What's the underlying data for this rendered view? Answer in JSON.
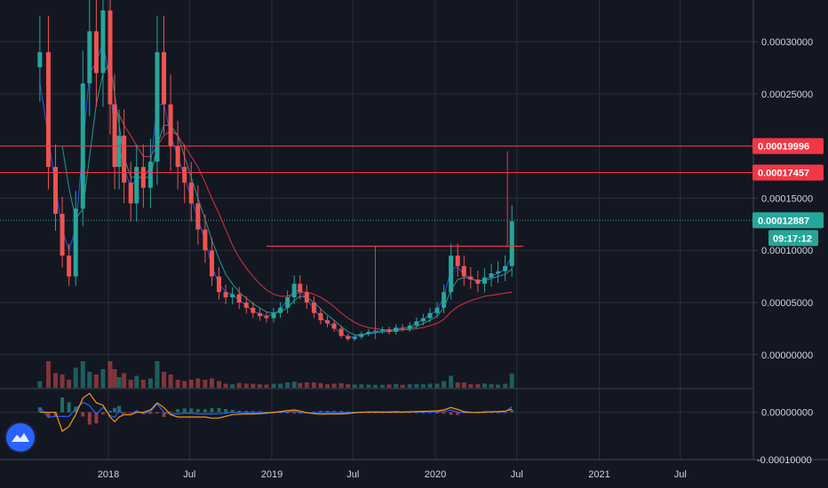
{
  "colors": {
    "background": "#131722",
    "grid": "#2a2e39",
    "axis_text": "#d1d4dc",
    "up": "#26a69a",
    "down": "#ef5350",
    "level_line": "#f23645",
    "last_price": "#26a69a",
    "ma_fast": "#2962ff",
    "ma_mid": "#26a69a",
    "ma_slow": "#ff9800",
    "ma_long": "#f23645"
  },
  "price_axis": {
    "ticks": [
      {
        "value": 0.0003,
        "label": "0.00030000"
      },
      {
        "value": 0.00025,
        "label": "0.00025000"
      },
      {
        "value": 0.00015,
        "label": "0.00015000"
      },
      {
        "value": 0.0001,
        "label": "0.00010000"
      },
      {
        "value": 5e-05,
        "label": "0.00005000"
      },
      {
        "value": 0.0,
        "label": "0.00000000"
      }
    ]
  },
  "indicator_axis": {
    "ticks": [
      {
        "value": 0.0,
        "label": "0.00000000"
      },
      {
        "value": -0.0001,
        "label": "-0.00010000"
      }
    ]
  },
  "time_axis": {
    "ticks": [
      {
        "date": "2018-01-01",
        "label": "2018"
      },
      {
        "date": "2018-07-01",
        "label": "Jul"
      },
      {
        "date": "2019-01-01",
        "label": "2019"
      },
      {
        "date": "2019-07-01",
        "label": "Jul"
      },
      {
        "date": "2020-01-01",
        "label": "2020"
      },
      {
        "date": "2020-07-01",
        "label": "Jul"
      },
      {
        "date": "2021-01-01",
        "label": "2021"
      },
      {
        "date": "2021-07-01",
        "label": "Jul"
      }
    ]
  },
  "price_tags": [
    {
      "value": 0.00019996,
      "label": "0.00019996",
      "kind": "level"
    },
    {
      "value": 0.00017457,
      "label": "0.00017457",
      "kind": "level"
    },
    {
      "value": 0.00012887,
      "label": "0.00012887",
      "kind": "last"
    }
  ],
  "countdown": "09:17:12",
  "logo": "tradingview-logo-icon",
  "chart_data": {
    "type": "candlestick",
    "x": [
      "2017-08-01",
      "2017-08-20",
      "2017-09-05",
      "2017-09-20",
      "2017-10-05",
      "2017-10-20",
      "2017-11-05",
      "2017-11-20",
      "2017-12-05",
      "2017-12-20",
      "2018-01-05",
      "2018-01-15",
      "2018-01-25",
      "2018-02-05",
      "2018-02-20",
      "2018-03-05",
      "2018-03-20",
      "2018-04-05",
      "2018-04-20",
      "2018-05-05",
      "2018-05-20",
      "2018-06-05",
      "2018-06-20",
      "2018-07-05",
      "2018-07-20",
      "2018-08-05",
      "2018-08-20",
      "2018-09-05",
      "2018-09-20",
      "2018-10-05",
      "2018-10-20",
      "2018-11-05",
      "2018-11-20",
      "2018-12-05",
      "2018-12-20",
      "2019-01-05",
      "2019-01-20",
      "2019-02-05",
      "2019-02-20",
      "2019-03-05",
      "2019-03-20",
      "2019-04-05",
      "2019-04-20",
      "2019-05-05",
      "2019-05-20",
      "2019-06-05",
      "2019-06-20",
      "2019-07-05",
      "2019-07-20",
      "2019-08-05",
      "2019-08-20",
      "2019-09-05",
      "2019-09-20",
      "2019-10-05",
      "2019-10-20",
      "2019-11-05",
      "2019-11-20",
      "2019-12-05",
      "2019-12-20",
      "2020-01-05",
      "2020-01-20",
      "2020-02-05",
      "2020-02-20",
      "2020-03-05",
      "2020-03-20",
      "2020-04-05",
      "2020-04-20",
      "2020-05-05",
      "2020-05-20",
      "2020-06-05",
      "2020-06-20"
    ],
    "close": [
      0.00029,
      0.00018,
      0.000135,
      9.5e-05,
      7.5e-05,
      0.00014,
      0.00026,
      0.00031,
      0.00027,
      0.00033,
      0.00024,
      0.00018,
      0.00021,
      0.000165,
      0.000145,
      0.00018,
      0.00016,
      0.000185,
      0.00029,
      0.00024,
      0.0002,
      0.00018,
      0.000165,
      0.000145,
      0.00012,
      0.0001,
      7.5e-05,
      6e-05,
      5.5e-05,
      5.8e-05,
      5e-05,
      4.5e-05,
      4e-05,
      3.7e-05,
      3.5e-05,
      4e-05,
      4.5e-05,
      5.5e-05,
      6.8e-05,
      6e-05,
      5e-05,
      4e-05,
      3.3e-05,
      3e-05,
      2.5e-05,
      1.8e-05,
      1.5e-05,
      1.7e-05,
      2e-05,
      2.2e-05,
      2.3e-05,
      2.4e-05,
      2.2e-05,
      2.6e-05,
      2.5e-05,
      2.8e-05,
      3.2e-05,
      3.5e-05,
      4e-05,
      4.5e-05,
      6e-05,
      9.5e-05,
      8.5e-05,
      7.5e-05,
      7.2e-05,
      6.8e-05,
      7.4e-05,
      7.8e-05,
      8e-05,
      8.5e-05,
      0.000128
    ],
    "ma_fast": [
      0.00026,
      0.00021,
      0.00016,
      0.00012,
      0.0001,
      0.00012,
      0.0002,
      0.00027,
      0.00028,
      0.0003,
      0.00026,
      0.00021,
      0.0002,
      0.00018,
      0.00016,
      0.00017,
      0.00017,
      0.00018,
      0.00024,
      0.00024,
      0.00021,
      0.00019,
      0.00017,
      0.00015,
      0.00013,
      0.00011,
      8.5e-05,
      6.8e-05,
      6e-05,
      5.8e-05,
      5.2e-05,
      4.7e-05,
      4.2e-05,
      3.9e-05,
      3.7e-05,
      3.9e-05,
      4.4e-05,
      5.2e-05,
      6.2e-05,
      6.1e-05,
      5.3e-05,
      4.4e-05,
      3.6e-05,
      3.1e-05,
      2.6e-05,
      2e-05,
      1.7e-05,
      1.7e-05,
      1.9e-05,
      2.1e-05,
      2.2e-05,
      2.3e-05,
      2.3e-05,
      2.5e-05,
      2.5e-05,
      2.7e-05,
      3e-05,
      3.4e-05,
      3.8e-05,
      4.3e-05,
      5.5e-05,
      8.2e-05,
      8.4e-05,
      7.7e-05,
      7.3e-05,
      7e-05,
      7.2e-05,
      7.5e-05,
      7.8e-05,
      8.2e-05,
      9.5e-05
    ],
    "ma_mid": [
      null,
      null,
      null,
      0.0002,
      0.00016,
      0.00013,
      0.00014,
      0.00019,
      0.00024,
      0.00027,
      0.00028,
      0.00025,
      0.00022,
      0.00019,
      0.00017,
      0.00017,
      0.00017,
      0.00017,
      0.0002,
      0.00022,
      0.00022,
      0.00021,
      0.00019,
      0.00017,
      0.00015,
      0.00013,
      0.00011,
      9.2e-05,
      7.7e-05,
      6.8e-05,
      6e-05,
      5.4e-05,
      4.9e-05,
      4.5e-05,
      4.1e-05,
      4e-05,
      4.1e-05,
      4.5e-05,
      5.2e-05,
      5.6e-05,
      5.5e-05,
      5e-05,
      4.4e-05,
      3.8e-05,
      3.3e-05,
      2.7e-05,
      2.2e-05,
      1.9e-05,
      1.9e-05,
      2e-05,
      2.1e-05,
      2.2e-05,
      2.2e-05,
      2.3e-05,
      2.4e-05,
      2.5e-05,
      2.7e-05,
      3e-05,
      3.3e-05,
      3.7e-05,
      4.5e-05,
      6.2e-05,
      7.2e-05,
      7.4e-05,
      7.3e-05,
      7.1e-05,
      7.1e-05,
      7.3e-05,
      7.5e-05,
      7.7e-05,
      8.2e-05
    ],
    "ma_long": [
      null,
      null,
      null,
      null,
      null,
      null,
      null,
      null,
      null,
      null,
      null,
      0.00023,
      0.00023,
      0.00022,
      0.00021,
      0.0002,
      0.00019,
      0.00019,
      0.0002,
      0.00021,
      0.000215,
      0.00021,
      0.0002,
      0.00019,
      0.00018,
      0.000165,
      0.00015,
      0.000135,
      0.00012,
      0.000105,
      9.3e-05,
      8.3e-05,
      7.5e-05,
      6.8e-05,
      6.2e-05,
      5.8e-05,
      5.6e-05,
      5.6e-05,
      5.8e-05,
      6e-05,
      6e-05,
      5.8e-05,
      5.5e-05,
      5.1e-05,
      4.6e-05,
      4e-05,
      3.5e-05,
      3.1e-05,
      2.8e-05,
      2.6e-05,
      2.5e-05,
      2.4e-05,
      2.4e-05,
      2.4e-05,
      2.4e-05,
      2.4e-05,
      2.5e-05,
      2.6e-05,
      2.8e-05,
      3e-05,
      3.4e-05,
      4.1e-05,
      4.6e-05,
      4.9e-05,
      5.2e-05,
      5.4e-05,
      5.6e-05,
      5.7e-05,
      5.8e-05,
      5.9e-05,
      6e-05
    ],
    "annotations": {
      "horizontal_levels": [
        0.00019996,
        0.00017457
      ],
      "trend_segment": {
        "from": "2018-12-20",
        "to": "2020-07-15",
        "value": 0.000104
      },
      "vertical_segments": [
        {
          "date": "2019-08-20",
          "from": 1.5e-05,
          "to": 0.000104
        },
        {
          "date": "2020-06-10",
          "from": 0.000104,
          "to": 0.000195
        }
      ]
    },
    "ylim": [
      -3.25e-05,
      0.00034
    ],
    "indicator_ylim": [
      -0.0001,
      5e-05
    ],
    "grid": true,
    "legend": "none"
  }
}
